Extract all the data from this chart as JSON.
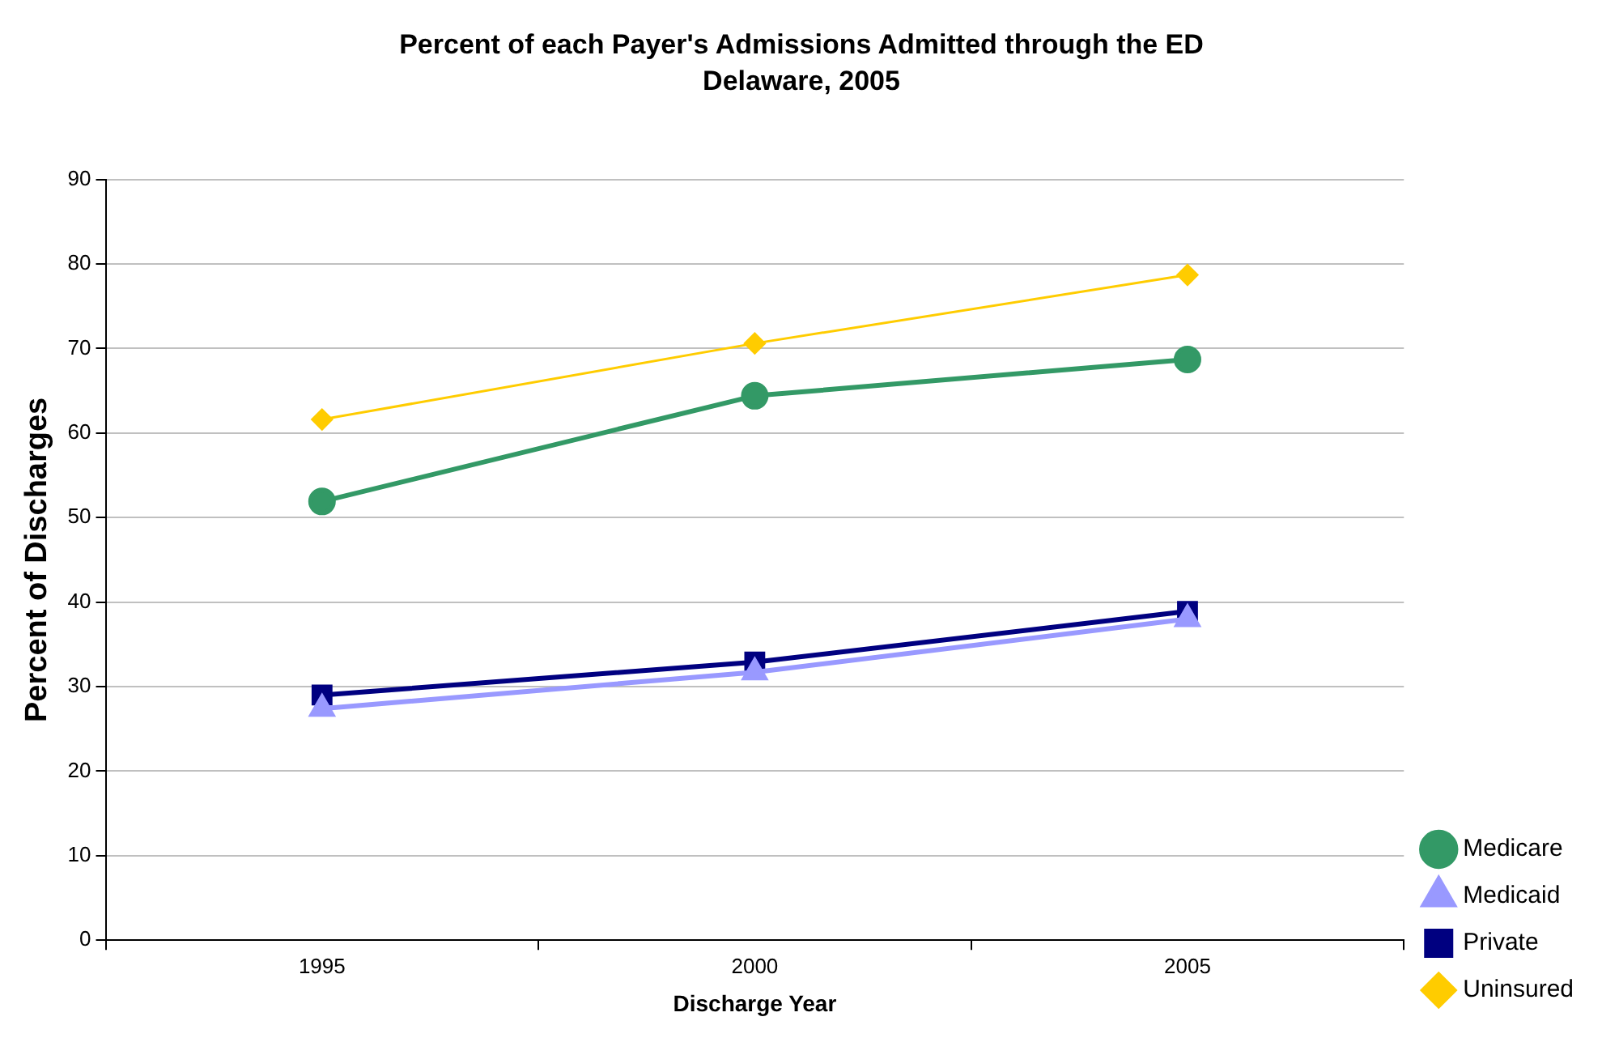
{
  "chart_data": {
    "type": "line",
    "title": "Percent of each Payer's Admissions Admitted through the ED",
    "subtitle": "Delaware, 2005",
    "xlabel": "Discharge Year",
    "ylabel": "Percent of Discharges",
    "categories": [
      "1995",
      "2000",
      "2005"
    ],
    "series": [
      {
        "name": "Medicare",
        "color": "#339966",
        "marker": "circle",
        "values": [
          51.9,
          64.4,
          68.7
        ]
      },
      {
        "name": "Medicaid",
        "color": "#9999ff",
        "marker": "triangle",
        "values": [
          27.4,
          31.7,
          38.0
        ]
      },
      {
        "name": "Private",
        "color": "#000080",
        "marker": "square",
        "values": [
          29.0,
          32.9,
          38.9
        ]
      },
      {
        "name": "Uninsured",
        "color": "#ffcc00",
        "marker": "diamond",
        "values": [
          61.6,
          70.6,
          78.7
        ]
      }
    ],
    "ylim": [
      0,
      90
    ],
    "yticks": [
      0,
      10,
      20,
      30,
      40,
      50,
      60,
      70,
      80,
      90
    ],
    "grid": "y",
    "legend": "right",
    "line_style": "solid"
  }
}
